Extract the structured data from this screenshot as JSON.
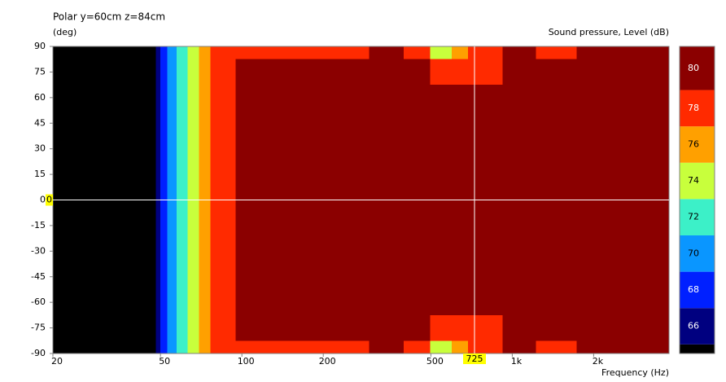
{
  "chart_data": {
    "type": "contour",
    "title": "Polar y=60cm z=84cm",
    "ylabel": "(deg)",
    "xlabel": "Frequency  (Hz)",
    "colorbar_label": "Sound pressure, Level  (dB)",
    "xscale": "log",
    "xlim": [
      20,
      3800
    ],
    "ylim": [
      -90,
      90
    ],
    "xticks": [
      20,
      50,
      100,
      200,
      500,
      {
        "value": 1000,
        "label": "1k"
      },
      {
        "value": 2000,
        "label": "2k"
      }
    ],
    "yticks": [
      90,
      75,
      60,
      45,
      30,
      15,
      0,
      -15,
      -30,
      -45,
      -60,
      -75,
      -90
    ],
    "colorbar_lim": [
      65.5,
      82.4
    ],
    "below_color": "#000000",
    "levels": [
      {
        "value": 66,
        "color": "#000080"
      },
      {
        "value": 68,
        "color": "#0020ff"
      },
      {
        "value": 70,
        "color": "#0a96ff"
      },
      {
        "value": 72,
        "color": "#3cf0c8"
      },
      {
        "value": 74,
        "color": "#c8ff3c"
      },
      {
        "value": 76,
        "color": "#ffa000"
      },
      {
        "value": 78,
        "color": "#ff2a00"
      },
      {
        "value": 80,
        "color": "#8b0000"
      }
    ],
    "frequencies": [
      20,
      44,
      47,
      49,
      51,
      55,
      60,
      66,
      73,
      80,
      90,
      100,
      150,
      250,
      350,
      450,
      550,
      650,
      725,
      850,
      1000,
      1500,
      2000,
      2500,
      3000,
      3500,
      3800
    ],
    "angles": [
      90,
      75,
      60,
      45,
      30,
      15,
      0,
      -15,
      -30,
      -45,
      -60,
      -75,
      -90
    ],
    "z": [
      [
        50,
        60,
        65,
        67,
        69,
        71,
        73,
        75,
        77,
        79,
        79,
        79,
        79,
        79,
        81,
        79,
        75,
        77,
        79,
        79,
        81,
        79,
        81,
        81,
        81,
        81,
        81
      ],
      [
        50,
        60,
        65,
        67,
        69,
        71,
        73,
        75,
        77,
        79,
        79,
        81,
        81,
        82,
        82,
        81,
        79,
        79,
        79,
        79,
        81,
        82,
        82,
        82,
        82,
        82,
        82
      ],
      [
        50,
        60,
        65,
        67,
        69,
        71,
        73,
        75,
        77,
        79,
        79,
        81,
        82,
        82,
        82,
        82,
        82,
        82,
        82,
        82,
        82,
        82,
        82,
        82,
        82,
        82,
        82
      ],
      [
        50,
        60,
        65,
        67,
        69,
        71,
        73,
        75,
        77,
        79,
        79,
        81,
        82,
        82,
        82,
        82,
        82,
        82,
        82,
        82,
        82,
        82,
        82,
        82,
        82,
        82,
        82
      ],
      [
        50,
        60,
        65,
        67,
        69,
        71,
        73,
        75,
        77,
        79,
        79,
        81,
        82,
        82,
        82,
        82,
        82,
        82,
        82,
        82,
        82,
        82,
        82,
        82,
        82,
        82,
        82
      ],
      [
        50,
        60,
        65,
        67,
        69,
        71,
        73,
        75,
        77,
        79,
        79,
        81,
        82,
        82,
        82,
        82,
        82,
        82,
        82,
        82,
        82,
        82,
        82,
        82,
        82,
        82,
        82
      ],
      [
        50,
        60,
        65,
        67,
        69,
        71,
        73,
        75,
        77,
        79,
        79,
        81,
        82,
        82,
        82,
        82,
        82,
        82,
        82,
        82,
        82,
        82,
        82,
        82,
        82,
        82,
        82
      ],
      [
        50,
        60,
        65,
        67,
        69,
        71,
        73,
        75,
        77,
        79,
        79,
        81,
        82,
        82,
        82,
        82,
        82,
        82,
        82,
        82,
        82,
        82,
        82,
        82,
        82,
        82,
        82
      ],
      [
        50,
        60,
        65,
        67,
        69,
        71,
        73,
        75,
        77,
        79,
        79,
        81,
        82,
        82,
        82,
        82,
        82,
        82,
        82,
        82,
        82,
        82,
        82,
        82,
        82,
        82,
        82
      ],
      [
        50,
        60,
        65,
        67,
        69,
        71,
        73,
        75,
        77,
        79,
        79,
        81,
        82,
        82,
        82,
        82,
        82,
        82,
        82,
        82,
        82,
        82,
        82,
        82,
        82,
        82,
        82
      ],
      [
        50,
        60,
        65,
        67,
        69,
        71,
        73,
        75,
        77,
        79,
        79,
        81,
        82,
        82,
        82,
        82,
        82,
        82,
        82,
        82,
        82,
        82,
        82,
        82,
        82,
        82,
        82
      ],
      [
        50,
        60,
        65,
        67,
        69,
        71,
        73,
        75,
        77,
        79,
        79,
        81,
        81,
        82,
        82,
        81,
        79,
        79,
        79,
        79,
        81,
        82,
        82,
        82,
        82,
        82,
        82
      ],
      [
        50,
        60,
        65,
        67,
        69,
        71,
        73,
        75,
        77,
        79,
        79,
        79,
        79,
        79,
        81,
        79,
        75,
        77,
        79,
        79,
        81,
        79,
        81,
        81,
        81,
        81,
        81
      ]
    ],
    "cursor": {
      "x": {
        "value": 725,
        "label": "725"
      },
      "y": 0
    }
  }
}
